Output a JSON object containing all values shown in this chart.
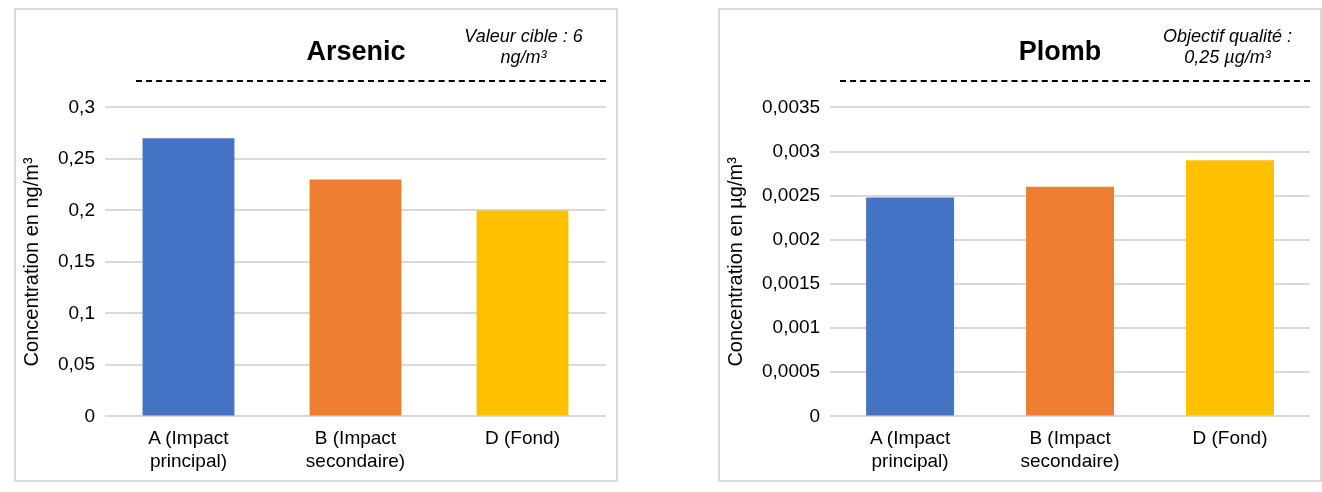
{
  "chart_data": [
    {
      "type": "bar",
      "title": "Arsenic",
      "ylabel": "Concentration en ng/m³",
      "annotations": [
        "Valeur cible : 6 ng/m³"
      ],
      "categories": [
        "A (Impact principal)",
        "B (Impact secondaire)",
        "D (Fond)"
      ],
      "values": [
        0.27,
        0.23,
        0.2
      ],
      "colors": [
        "#4472c4",
        "#ed7d31",
        "#ffc000"
      ],
      "ylim": [
        0,
        0.3
      ],
      "yticks": [
        0,
        {
          "value": 0.05,
          "label": "0,05"
        },
        {
          "value": 0.1,
          "label": "0,1"
        },
        {
          "value": 0.15,
          "label": "0,15"
        },
        {
          "value": 0.2,
          "label": "0,2"
        },
        {
          "value": 0.25,
          "label": "0,25"
        },
        {
          "value": 0.3,
          "label": "0,3"
        }
      ],
      "grid": "y",
      "legend": false
    },
    {
      "type": "bar",
      "title": "Plomb",
      "ylabel": "Concentration en µg/m³",
      "annotations": [
        "Objectif qualité : 0,25 µg/m³"
      ],
      "categories": [
        "A (Impact principal)",
        "B (Impact secondaire)",
        "D (Fond)"
      ],
      "values": [
        0.00248,
        0.0026,
        0.0029
      ],
      "colors": [
        "#4472c4",
        "#ed7d31",
        "#ffc000"
      ],
      "ylim": [
        0,
        0.0035
      ],
      "yticks": [
        0,
        {
          "value": 0.0005,
          "label": "0,0005"
        },
        {
          "value": 0.001,
          "label": "0,001"
        },
        {
          "value": 0.0015,
          "label": "0,0015"
        },
        {
          "value": 0.002,
          "label": "0,002"
        },
        {
          "value": 0.0025,
          "label": "0,0025"
        },
        {
          "value": 0.003,
          "label": "0,003"
        },
        {
          "value": 0.0035,
          "label": "0,0035"
        }
      ],
      "grid": "y",
      "legend": false
    }
  ]
}
